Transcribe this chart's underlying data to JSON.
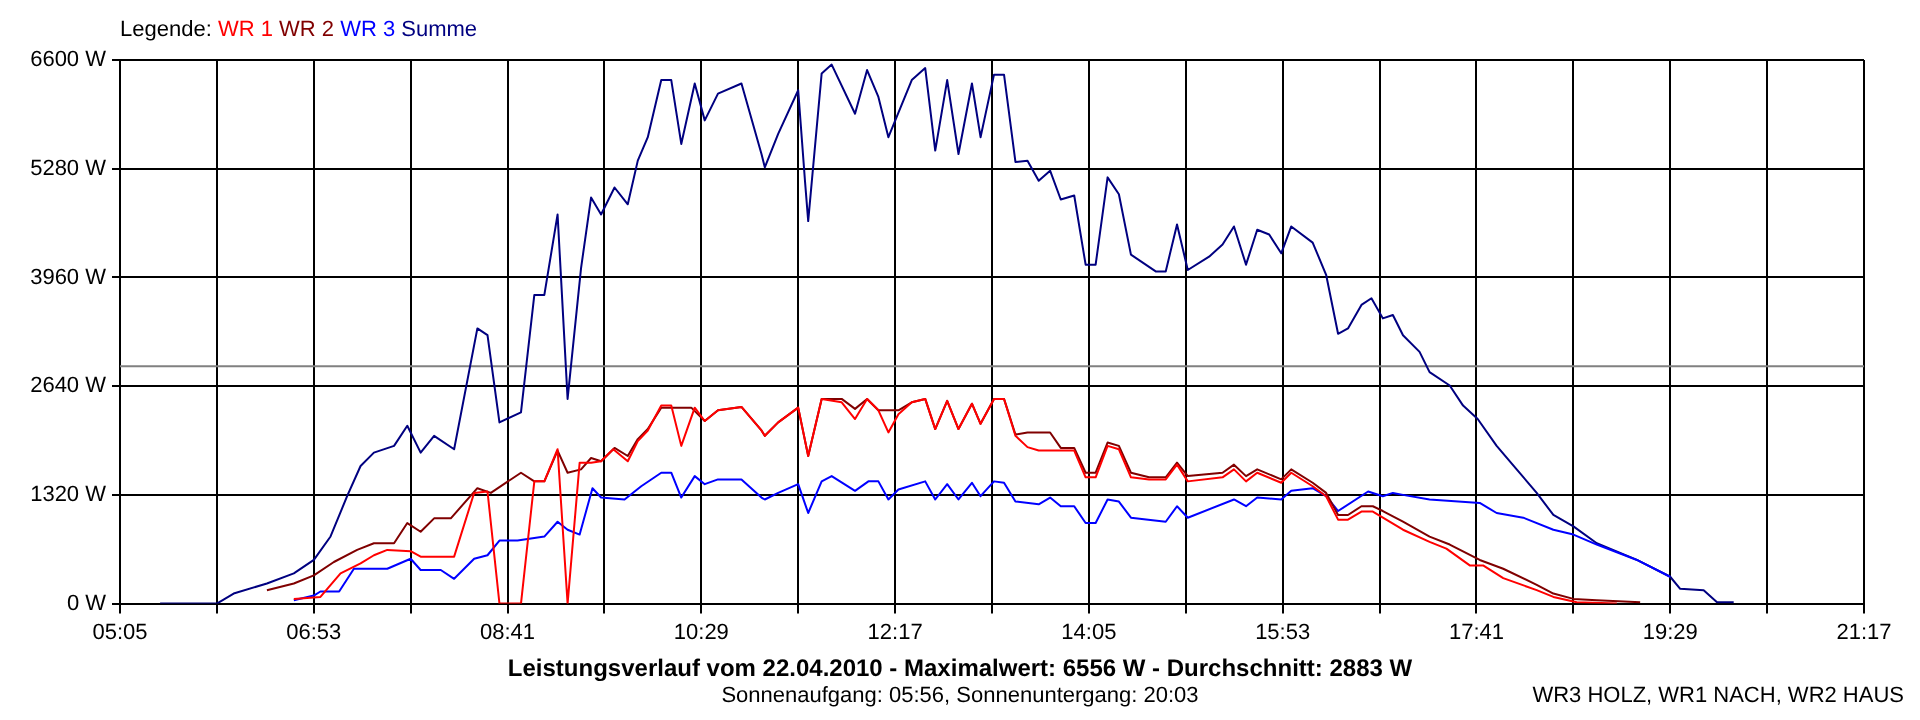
{
  "chart_data": {
    "type": "line",
    "title": "Leistungsverlauf vom 22.04.2010 - Maximalwert: 6556 W - Durchschnitt: 2883 W",
    "subtitle": "Sonnenaufgang: 05:56, Sonnenuntergang: 20:03",
    "legend_title": "Legende:",
    "legend": "top left",
    "grid": true,
    "annotations": [
      "WR3 HOLZ, WR1 NACH, WR2 HAUS"
    ],
    "xlim": [
      5.0833,
      21.2833
    ],
    "xticks": [
      {
        "value": 5.0833,
        "label": "05:05"
      },
      {
        "value": 5.9833,
        "label": null
      },
      {
        "value": 6.8833,
        "label": "06:53"
      },
      {
        "value": 7.7833,
        "label": null
      },
      {
        "value": 8.6833,
        "label": "08:41"
      },
      {
        "value": 9.5833,
        "label": null
      },
      {
        "value": 10.4833,
        "label": "10:29"
      },
      {
        "value": 11.3833,
        "label": null
      },
      {
        "value": 12.2833,
        "label": "12:17"
      },
      {
        "value": 13.1833,
        "label": null
      },
      {
        "value": 14.0833,
        "label": "14:05"
      },
      {
        "value": 14.9833,
        "label": null
      },
      {
        "value": 15.8833,
        "label": "15:53"
      },
      {
        "value": 16.7833,
        "label": null
      },
      {
        "value": 17.6833,
        "label": "17:41"
      },
      {
        "value": 18.5833,
        "label": null
      },
      {
        "value": 19.4833,
        "label": "19:29"
      },
      {
        "value": 20.3833,
        "label": null
      },
      {
        "value": 21.2833,
        "label": "21:17"
      }
    ],
    "ylim": [
      0,
      6600
    ],
    "yticks": [
      {
        "value": 0,
        "label": "0 W"
      },
      {
        "value": 1320,
        "label": "1320 W"
      },
      {
        "value": 2640,
        "label": "2640 W"
      },
      {
        "value": 3960,
        "label": "3960 W"
      },
      {
        "value": 5280,
        "label": "5280 W"
      },
      {
        "value": 6600,
        "label": "6600 W"
      }
    ],
    "ref_lines": [
      {
        "axis": "y",
        "value": 2883,
        "label": null,
        "color": "#808080"
      }
    ],
    "series": [
      {
        "name": "WR 1",
        "color": "#ff0000",
        "x": [
          6.698,
          6.945,
          7.132,
          7.318,
          7.442,
          7.566,
          7.783,
          7.876,
          8.187,
          8.373,
          8.497,
          8.608,
          8.808,
          8.932,
          9.025,
          9.148,
          9.241,
          9.353,
          9.459,
          9.552,
          9.665,
          9.8,
          9.893,
          9.986,
          10.111,
          10.204,
          10.297,
          10.422,
          10.515,
          10.638,
          10.856,
          11.042,
          11.073,
          11.197,
          11.383,
          11.476,
          11.601,
          11.787,
          11.911,
          12.023,
          12.128,
          12.221,
          12.314,
          12.438,
          12.563,
          12.656,
          12.767,
          12.872,
          12.997,
          13.077,
          13.202,
          13.295,
          13.401,
          13.513,
          13.617,
          13.723,
          13.822,
          13.947,
          14.053,
          14.146,
          14.257,
          14.362,
          14.474,
          14.642,
          14.797,
          14.902,
          15.002,
          15.325,
          15.431,
          15.543,
          15.647,
          15.87,
          15.963,
          16.162,
          16.287,
          16.398,
          16.49,
          16.615,
          16.721,
          17.001,
          17.248,
          17.404,
          17.621,
          17.745,
          17.932,
          18.243,
          18.398,
          18.615,
          18.988
        ],
        "values": [
          57,
          81,
          367,
          489,
          587,
          652,
          636,
          570,
          570,
          1344,
          1361,
          0,
          0,
          1484,
          1484,
          1874,
          0,
          1711,
          1711,
          1728,
          1874,
          1728,
          1972,
          2102,
          2404,
          2404,
          1915,
          2379,
          2217,
          2347,
          2388,
          2102,
          2037,
          2200,
          2379,
          1792,
          2485,
          2444,
          2241,
          2485,
          2347,
          2078,
          2300,
          2444,
          2485,
          2119,
          2461,
          2119,
          2427,
          2183,
          2485,
          2485,
          2037,
          1900,
          1858,
          1858,
          1858,
          1858,
          1533,
          1533,
          1915,
          1874,
          1533,
          1508,
          1508,
          1687,
          1484,
          1533,
          1630,
          1484,
          1589,
          1467,
          1589,
          1425,
          1304,
          1019,
          1019,
          1117,
          1117,
          897,
          750,
          668,
          464,
          464,
          310,
          163,
          81,
          16,
          0
        ]
      },
      {
        "name": "WR 2",
        "color": "#800000",
        "x": [
          6.448,
          6.698,
          6.884,
          7.07,
          7.286,
          7.442,
          7.629,
          7.752,
          7.876,
          8.001,
          8.156,
          8.403,
          8.528,
          8.808,
          8.932,
          9.025,
          9.148,
          9.241,
          9.366,
          9.459,
          9.552,
          9.677,
          9.8,
          9.893,
          9.986,
          10.111,
          10.39,
          10.515,
          10.638,
          10.856,
          11.042,
          11.073,
          11.197,
          11.383,
          11.476,
          11.601,
          11.787,
          11.911,
          12.023,
          12.128,
          12.314,
          12.438,
          12.563,
          12.656,
          12.767,
          12.872,
          12.997,
          13.077,
          13.202,
          13.295,
          13.401,
          13.513,
          13.723,
          13.822,
          13.947,
          14.053,
          14.146,
          14.257,
          14.362,
          14.474,
          14.642,
          14.797,
          14.902,
          15.002,
          15.325,
          15.431,
          15.543,
          15.647,
          15.87,
          15.963,
          16.162,
          16.287,
          16.398,
          16.49,
          16.615,
          16.721,
          16.814,
          17.001,
          17.248,
          17.435,
          17.714,
          17.932,
          18.243,
          18.398,
          18.584,
          18.801,
          19.204
        ],
        "values": [
          163,
          244,
          342,
          505,
          652,
          733,
          733,
          978,
          872,
          1035,
          1035,
          1401,
          1344,
          1589,
          1484,
          1484,
          1858,
          1589,
          1630,
          1768,
          1728,
          1890,
          1792,
          1997,
          2119,
          2379,
          2379,
          2217,
          2347,
          2388,
          2102,
          2037,
          2200,
          2379,
          1792,
          2485,
          2485,
          2364,
          2485,
          2347,
          2347,
          2444,
          2485,
          2119,
          2461,
          2119,
          2427,
          2183,
          2485,
          2485,
          2053,
          2078,
          2078,
          1890,
          1890,
          1589,
          1589,
          1956,
          1915,
          1589,
          1533,
          1533,
          1711,
          1548,
          1589,
          1687,
          1548,
          1630,
          1508,
          1630,
          1467,
          1344,
          1076,
          1076,
          1182,
          1182,
          1124,
          994,
          814,
          717,
          530,
          423,
          228,
          122,
          57,
          41,
          16
        ]
      },
      {
        "name": "WR 3",
        "color": "#0000ff",
        "x": [
          6.698,
          6.884,
          6.945,
          7.119,
          7.256,
          7.566,
          7.783,
          7.876,
          8.063,
          8.187,
          8.373,
          8.497,
          8.608,
          8.776,
          9.025,
          9.148,
          9.241,
          9.353,
          9.472,
          9.552,
          9.77,
          9.925,
          10.111,
          10.204,
          10.297,
          10.422,
          10.515,
          10.638,
          10.856,
          11.042,
          11.073,
          11.197,
          11.383,
          11.476,
          11.601,
          11.694,
          11.911,
          12.035,
          12.128,
          12.221,
          12.314,
          12.563,
          12.656,
          12.767,
          12.872,
          12.997,
          13.077,
          13.202,
          13.295,
          13.401,
          13.617,
          13.723,
          13.822,
          13.947,
          14.053,
          14.146,
          14.257,
          14.362,
          14.474,
          14.797,
          14.902,
          15.002,
          15.431,
          15.543,
          15.647,
          15.87,
          15.963,
          16.162,
          16.287,
          16.398,
          16.677,
          16.814,
          16.907,
          17.001,
          17.248,
          17.714,
          17.871,
          18.118,
          18.398,
          18.584,
          18.801,
          19.174,
          19.483
        ],
        "values": [
          41,
          98,
          147,
          147,
          423,
          423,
          545,
          408,
          408,
          301,
          545,
          587,
          765,
          765,
          814,
          994,
          897,
          838,
          1401,
          1288,
          1264,
          1425,
          1589,
          1589,
          1288,
          1548,
          1450,
          1508,
          1508,
          1288,
          1264,
          1344,
          1450,
          1100,
          1484,
          1548,
          1369,
          1484,
          1484,
          1264,
          1386,
          1484,
          1264,
          1450,
          1264,
          1467,
          1304,
          1484,
          1467,
          1239,
          1206,
          1288,
          1182,
          1182,
          978,
          978,
          1264,
          1239,
          1043,
          994,
          1182,
          1043,
          1264,
          1182,
          1288,
          1264,
          1369,
          1401,
          1304,
          1124,
          1361,
          1304,
          1344,
          1320,
          1264,
          1222,
          1100,
          1043,
          897,
          838,
          717,
          530,
          326
        ]
      },
      {
        "name": "Summe",
        "color": "#000080",
        "x": [
          5.456,
          5.983,
          6.139,
          6.448,
          6.698,
          6.884,
          7.039,
          7.193,
          7.318,
          7.442,
          7.629,
          7.752,
          7.876,
          8.001,
          8.187,
          8.403,
          8.497,
          8.608,
          8.808,
          8.932,
          9.025,
          9.148,
          9.241,
          9.366,
          9.459,
          9.552,
          9.677,
          9.8,
          9.893,
          9.986,
          10.111,
          10.204,
          10.297,
          10.422,
          10.515,
          10.638,
          10.856,
          11.042,
          11.073,
          11.197,
          11.383,
          11.446,
          11.476,
          11.601,
          11.694,
          11.911,
          12.023,
          12.128,
          12.221,
          12.438,
          12.563,
          12.656,
          12.767,
          12.872,
          12.997,
          13.077,
          13.202,
          13.295,
          13.401,
          13.513,
          13.617,
          13.723,
          13.822,
          13.947,
          14.053,
          14.146,
          14.257,
          14.362,
          14.474,
          14.704,
          14.797,
          14.902,
          15.002,
          15.2,
          15.325,
          15.431,
          15.543,
          15.647,
          15.758,
          15.87,
          15.963,
          16.162,
          16.287,
          16.398,
          16.49,
          16.615,
          16.708,
          16.814,
          16.907,
          17.001,
          17.155,
          17.248,
          17.435,
          17.559,
          17.695,
          17.871,
          18.057,
          18.243,
          18.398,
          18.584,
          18.801,
          19.174,
          19.483,
          19.576,
          19.794,
          19.918,
          20.073
        ],
        "values": [
          0,
          0,
          122,
          244,
          367,
          530,
          815,
          1304,
          1671,
          1833,
          1915,
          2159,
          1833,
          2037,
          1874,
          3341,
          3259,
          2200,
          2322,
          3748,
          3748,
          4725,
          2485,
          4074,
          4930,
          4725,
          5052,
          4848,
          5378,
          5663,
          6356,
          6356,
          5581,
          6315,
          5867,
          6192,
          6315,
          5459,
          5297,
          5704,
          6233,
          5133,
          4644,
          6437,
          6544,
          5948,
          6478,
          6152,
          5663,
          6356,
          6502,
          5500,
          6356,
          5459,
          6315,
          5663,
          6422,
          6422,
          5362,
          5378,
          5133,
          5256,
          4906,
          4955,
          4115,
          4115,
          5175,
          4970,
          4237,
          4033,
          4033,
          4603,
          4050,
          4212,
          4359,
          4579,
          4115,
          4539,
          4481,
          4253,
          4579,
          4383,
          3992,
          3276,
          3341,
          3626,
          3707,
          3463,
          3504,
          3259,
          3056,
          2811,
          2648,
          2404,
          2241,
          1915,
          1630,
          1344,
          1076,
          937,
          733,
          530,
          326,
          179,
          163,
          16,
          16
        ]
      }
    ]
  }
}
